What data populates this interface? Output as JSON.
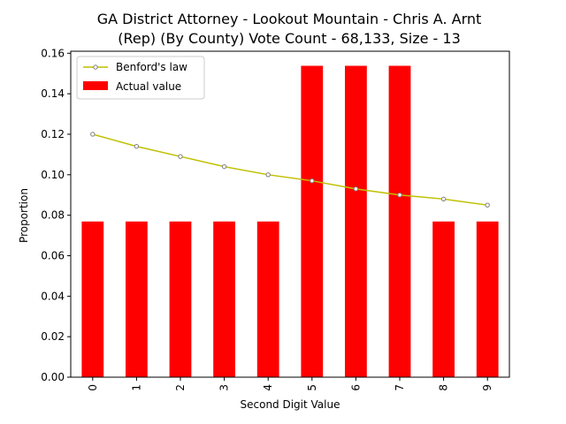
{
  "chart_data": {
    "type": "bar",
    "title_lines": [
      "GA District Attorney - Lookout Mountain - Chris A. Arnt",
      "(Rep) (By County) Vote Count - 68,133, Size - 13"
    ],
    "xlabel": "Second Digit Value",
    "ylabel": "Proportion",
    "categories": [
      "0",
      "1",
      "2",
      "3",
      "4",
      "5",
      "6",
      "7",
      "8",
      "9"
    ],
    "ylim": [
      0,
      0.161
    ],
    "yticks": [
      0.0,
      0.02,
      0.04,
      0.06,
      0.08,
      0.1,
      0.12,
      0.14,
      0.16
    ],
    "ytick_labels": [
      "0.00",
      "0.02",
      "0.04",
      "0.06",
      "0.08",
      "0.10",
      "0.12",
      "0.14",
      "0.16"
    ],
    "legend_position": "top-left",
    "series": [
      {
        "name": "Benford's law",
        "kind": "line",
        "color": "#bfbf00",
        "values": [
          0.12,
          0.114,
          0.109,
          0.104,
          0.1,
          0.097,
          0.093,
          0.09,
          0.088,
          0.085
        ]
      },
      {
        "name": "Actual value",
        "kind": "bar",
        "color": "#ff0000",
        "values": [
          0.0769,
          0.0769,
          0.0769,
          0.0769,
          0.0769,
          0.1538,
          0.1538,
          0.1538,
          0.0769,
          0.0769
        ]
      }
    ]
  }
}
